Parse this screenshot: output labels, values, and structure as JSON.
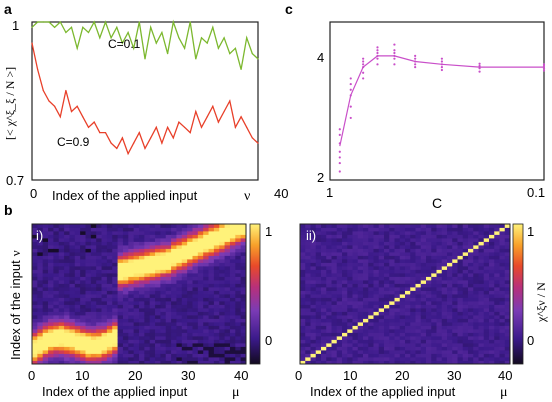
{
  "panels": {
    "a": {
      "letter": "a",
      "ylabel": "[< χ^ξ_ξ / N >]",
      "xlabel": "Index of the applied input",
      "xlabel_symbol": "ν",
      "yticks": [
        "1",
        "0.7"
      ],
      "xticks": [
        "0",
        "40"
      ]
    },
    "b": {
      "letter": "b",
      "i": {
        "tag": "i)",
        "ylabel": "Index of the input",
        "ylabel_symbol": "ν",
        "xlabel": "Index of the applied input",
        "xlabel_symbol": "μ",
        "xticks": [
          "0",
          "10",
          "20",
          "30",
          "40"
        ],
        "cbar_ticks": [
          "1",
          "0"
        ]
      },
      "ii": {
        "tag": "ii)",
        "xlabel": "Index of the applied input",
        "xlabel_symbol": "μ",
        "xticks": [
          "0",
          "10",
          "20",
          "30",
          "40"
        ],
        "cbar_ticks": [
          "1",
          "0"
        ],
        "cbar_label": "χ^ξν / N"
      }
    },
    "c": {
      "letter": "c",
      "xlabel": "C",
      "yticks": [
        "4",
        "2"
      ],
      "xticks": [
        "1",
        "0.1"
      ]
    }
  },
  "colors": {
    "green_series": "#7cb82f",
    "red_series": "#e8402a",
    "magenta_series": "#c94fc9",
    "heat_low": "#3b1a8a",
    "heat_high": "#fff27a"
  },
  "chart_data": [
    {
      "id": "a",
      "type": "line",
      "x_range": [
        0,
        40
      ],
      "y_range": [
        0.7,
        1.0
      ],
      "series": [
        {
          "name": "C=0.1",
          "color": "#7cb82f",
          "x": [
            0,
            1,
            2,
            3,
            4,
            5,
            6,
            7,
            8,
            9,
            10,
            11,
            12,
            13,
            14,
            15,
            16,
            17,
            18,
            19,
            20,
            21,
            22,
            23,
            24,
            25,
            26,
            27,
            28,
            29,
            30,
            31,
            32,
            33,
            34,
            35,
            36,
            37,
            38,
            39,
            40
          ],
          "values": [
            0.99,
            1.0,
            1.0,
            1.0,
            0.99,
            1.0,
            0.98,
            0.99,
            0.95,
            0.99,
            0.98,
            1.0,
            0.97,
            1.0,
            0.97,
            0.99,
            0.96,
            0.98,
            0.95,
            1.0,
            0.93,
            0.99,
            0.96,
            0.98,
            0.94,
            1.0,
            0.97,
            0.95,
            1.0,
            0.93,
            0.97,
            0.96,
            0.99,
            0.95,
            0.97,
            0.94,
            0.95,
            0.91,
            0.97,
            0.94,
            0.93
          ]
        },
        {
          "name": "C=0.9",
          "color": "#e8402a",
          "x": [
            0,
            1,
            2,
            3,
            4,
            5,
            6,
            7,
            8,
            9,
            10,
            11,
            12,
            13,
            14,
            15,
            16,
            17,
            18,
            19,
            20,
            21,
            22,
            23,
            24,
            25,
            26,
            27,
            28,
            29,
            30,
            31,
            32,
            33,
            34,
            35,
            36,
            37,
            38,
            39,
            40
          ],
          "values": [
            0.96,
            0.91,
            0.87,
            0.85,
            0.84,
            0.82,
            0.87,
            0.83,
            0.84,
            0.82,
            0.8,
            0.81,
            0.79,
            0.79,
            0.77,
            0.76,
            0.78,
            0.75,
            0.77,
            0.79,
            0.76,
            0.78,
            0.8,
            0.77,
            0.8,
            0.78,
            0.81,
            0.8,
            0.79,
            0.83,
            0.8,
            0.82,
            0.84,
            0.81,
            0.83,
            0.85,
            0.8,
            0.82,
            0.8,
            0.78,
            0.77
          ]
        }
      ]
    },
    {
      "id": "c",
      "type": "scatter",
      "x_scale": "log",
      "x_range": [
        1,
        0.1
      ],
      "y_range": [
        1.8,
        4.6
      ],
      "x": [
        0.9,
        0.8,
        0.7,
        0.6,
        0.5,
        0.4,
        0.3,
        0.2,
        0.1
      ],
      "values": [
        2.4,
        3.3,
        3.8,
        4.0,
        4.0,
        3.9,
        3.85,
        3.8,
        3.8
      ],
      "samples": [
        {
          "x": 0.9,
          "y": [
            1.95,
            2.1,
            2.2,
            2.3,
            2.45,
            2.6,
            2.7
          ]
        },
        {
          "x": 0.8,
          "y": [
            2.9,
            3.1,
            3.3,
            3.4,
            3.5,
            3.6
          ]
        },
        {
          "x": 0.7,
          "y": [
            3.6,
            3.7,
            3.8,
            3.85,
            3.9,
            3.95
          ]
        },
        {
          "x": 0.6,
          "y": [
            3.85,
            3.95,
            4.0,
            4.05,
            4.1,
            4.15
          ]
        },
        {
          "x": 0.5,
          "y": [
            3.85,
            3.95,
            4.0,
            4.05,
            4.1,
            4.2
          ]
        },
        {
          "x": 0.4,
          "y": [
            3.8,
            3.85,
            3.9,
            3.95,
            4.0
          ]
        },
        {
          "x": 0.3,
          "y": [
            3.75,
            3.8,
            3.85,
            3.9,
            3.95
          ]
        },
        {
          "x": 0.2,
          "y": [
            3.72,
            3.78,
            3.82,
            3.86
          ]
        },
        {
          "x": 0.1,
          "y": [
            3.74,
            3.78,
            3.82,
            3.85
          ]
        }
      ]
    },
    {
      "id": "b-i",
      "type": "heatmap",
      "x_range": [
        0,
        40
      ],
      "y_range": [
        0,
        40
      ],
      "z_range": [
        -0.2,
        1.0
      ],
      "description_grid": "40x40 matrix; high values along sigmoid-like band shifting from low ν (μ<15) to high ν (μ>25), sharp jump near μ≈16"
    },
    {
      "id": "b-ii",
      "type": "heatmap",
      "x_range": [
        0,
        40
      ],
      "y_range": [
        0,
        40
      ],
      "z_range": [
        -0.2,
        1.0
      ],
      "description_grid": "40x40 matrix; value 1 on the diagonal μ=ν, near 0 elsewhere"
    }
  ]
}
